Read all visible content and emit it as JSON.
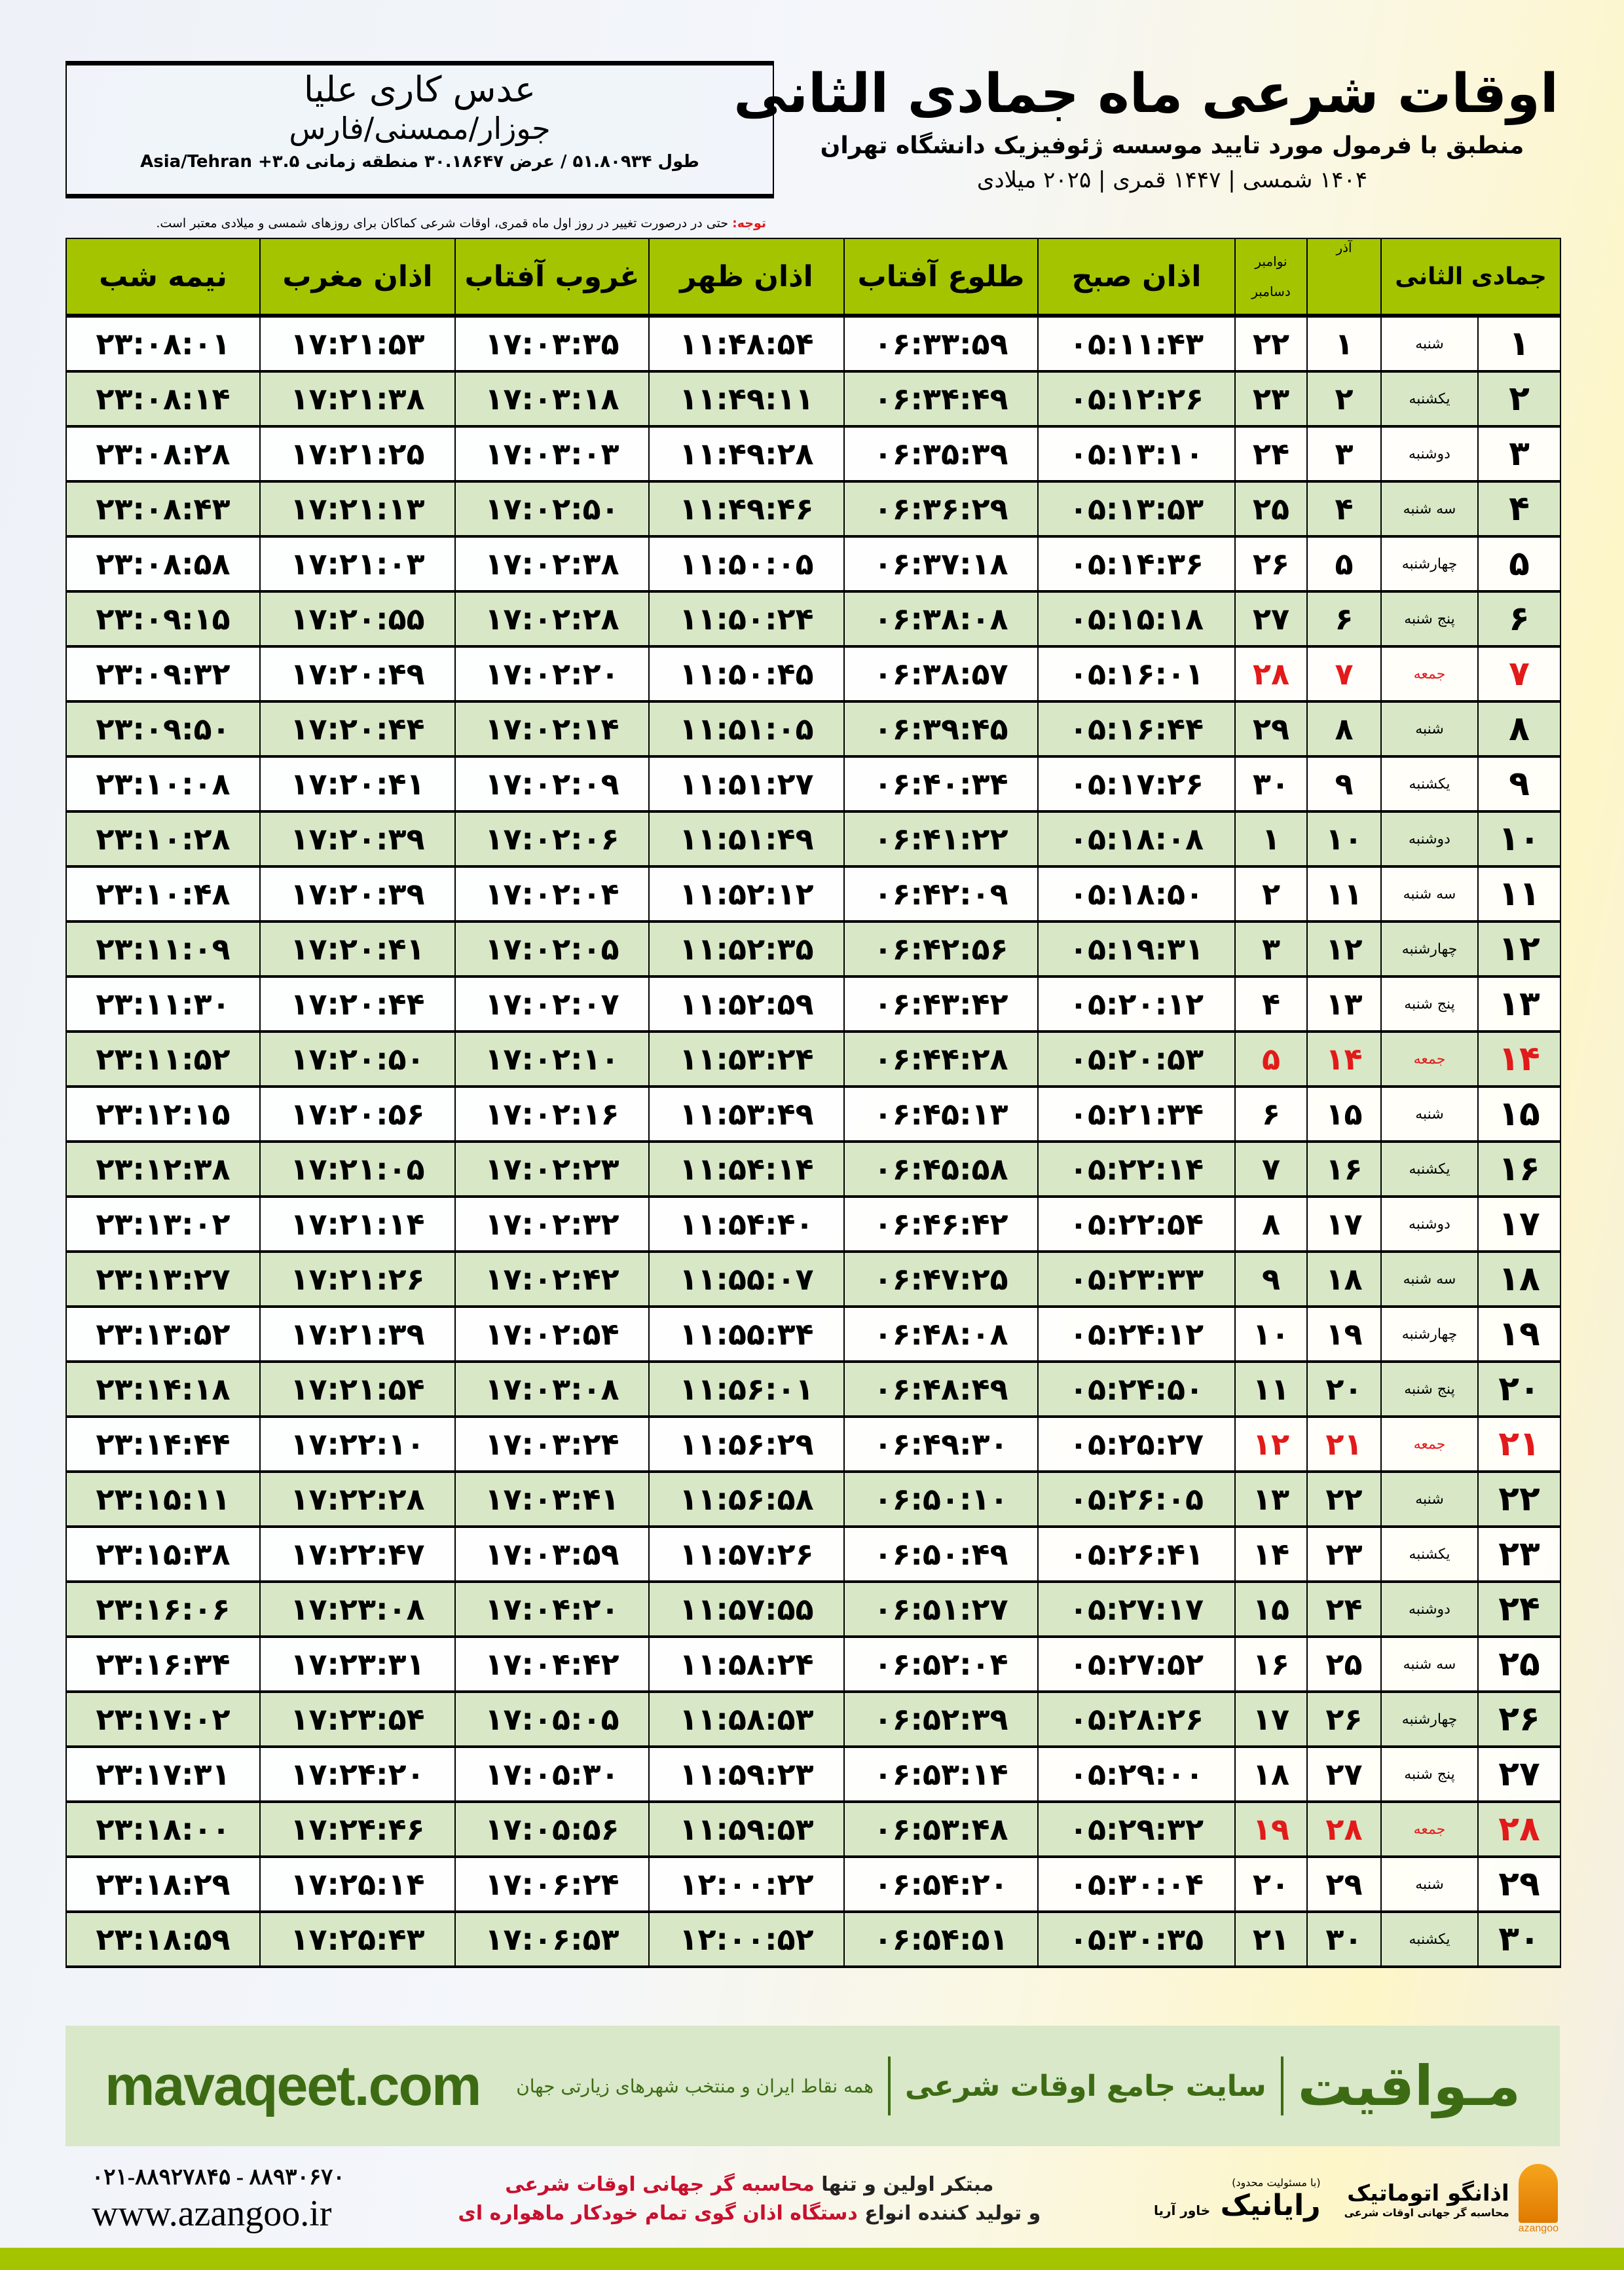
{
  "location": {
    "place": "عدس کاری علیا",
    "region": "جوزار/ممسنی/فارس",
    "coords": "طول ۵۱.۸۰۹۳۴ / عرض ۳۰.۱۸۶۴۷ منطقه زمانی ۳.۵+ Asia/Tehran"
  },
  "header": {
    "title": "اوقات شرعی ماه جمادی الثانی",
    "subtitle": "منطبق با فرمول مورد تایید موسسه ژئوفیزیک دانشگاه تهران",
    "years": "۱۴۰۴ شمسی | ۱۴۴۷ قمری | ۲۰۲۵ میلادی"
  },
  "note": {
    "label": "توجه:",
    "text": " حتی در درصورت تغییر در روز اول ماه قمری، اوقات شرعی کماکان برای روزهای شمسی و میلادی معتبر است."
  },
  "colors": {
    "header_bg": "#a5c400",
    "even_row": "#d8e7c6",
    "holiday": "#e21a1a",
    "brand_green": "#3d6b14"
  },
  "columns": {
    "hijri": "جمادی الثانی",
    "azar": "آذر",
    "gregorian_top": "نوامبر",
    "gregorian_bottom": "دسامبر",
    "fajr": "اذان صبح",
    "sunrise": "طلوع آفتاب",
    "dhuhr": "اذان ظهر",
    "sunset": "غروب آفتاب",
    "maghrib": "اذان مغرب",
    "midnight": "نیمه شب"
  },
  "rows": [
    {
      "day": "۱",
      "weekday": "شنبه",
      "azar": "۱",
      "greg": "۲۲",
      "fajr": "۰۵:۱۱:۴۳",
      "sunrise": "۰۶:۳۳:۵۹",
      "dhuhr": "۱۱:۴۸:۵۴",
      "sunset": "۱۷:۰۳:۳۵",
      "maghrib": "۱۷:۲۱:۵۳",
      "midnight": "۲۳:۰۸:۰۱",
      "holiday": false
    },
    {
      "day": "۲",
      "weekday": "یکشنبه",
      "azar": "۲",
      "greg": "۲۳",
      "fajr": "۰۵:۱۲:۲۶",
      "sunrise": "۰۶:۳۴:۴۹",
      "dhuhr": "۱۱:۴۹:۱۱",
      "sunset": "۱۷:۰۳:۱۸",
      "maghrib": "۱۷:۲۱:۳۸",
      "midnight": "۲۳:۰۸:۱۴",
      "holiday": false
    },
    {
      "day": "۳",
      "weekday": "دوشنبه",
      "azar": "۳",
      "greg": "۲۴",
      "fajr": "۰۵:۱۳:۱۰",
      "sunrise": "۰۶:۳۵:۳۹",
      "dhuhr": "۱۱:۴۹:۲۸",
      "sunset": "۱۷:۰۳:۰۳",
      "maghrib": "۱۷:۲۱:۲۵",
      "midnight": "۲۳:۰۸:۲۸",
      "holiday": false
    },
    {
      "day": "۴",
      "weekday": "سه شنبه",
      "azar": "۴",
      "greg": "۲۵",
      "fajr": "۰۵:۱۳:۵۳",
      "sunrise": "۰۶:۳۶:۲۹",
      "dhuhr": "۱۱:۴۹:۴۶",
      "sunset": "۱۷:۰۲:۵۰",
      "maghrib": "۱۷:۲۱:۱۳",
      "midnight": "۲۳:۰۸:۴۳",
      "holiday": false
    },
    {
      "day": "۵",
      "weekday": "چهارشنبه",
      "azar": "۵",
      "greg": "۲۶",
      "fajr": "۰۵:۱۴:۳۶",
      "sunrise": "۰۶:۳۷:۱۸",
      "dhuhr": "۱۱:۵۰:۰۵",
      "sunset": "۱۷:۰۲:۳۸",
      "maghrib": "۱۷:۲۱:۰۳",
      "midnight": "۲۳:۰۸:۵۸",
      "holiday": false
    },
    {
      "day": "۶",
      "weekday": "پنج شنبه",
      "azar": "۶",
      "greg": "۲۷",
      "fajr": "۰۵:۱۵:۱۸",
      "sunrise": "۰۶:۳۸:۰۸",
      "dhuhr": "۱۱:۵۰:۲۴",
      "sunset": "۱۷:۰۲:۲۸",
      "maghrib": "۱۷:۲۰:۵۵",
      "midnight": "۲۳:۰۹:۱۵",
      "holiday": false
    },
    {
      "day": "۷",
      "weekday": "جمعه",
      "azar": "۷",
      "greg": "۲۸",
      "fajr": "۰۵:۱۶:۰۱",
      "sunrise": "۰۶:۳۸:۵۷",
      "dhuhr": "۱۱:۵۰:۴۵",
      "sunset": "۱۷:۰۲:۲۰",
      "maghrib": "۱۷:۲۰:۴۹",
      "midnight": "۲۳:۰۹:۳۲",
      "holiday": true
    },
    {
      "day": "۸",
      "weekday": "شنبه",
      "azar": "۸",
      "greg": "۲۹",
      "fajr": "۰۵:۱۶:۴۴",
      "sunrise": "۰۶:۳۹:۴۵",
      "dhuhr": "۱۱:۵۱:۰۵",
      "sunset": "۱۷:۰۲:۱۴",
      "maghrib": "۱۷:۲۰:۴۴",
      "midnight": "۲۳:۰۹:۵۰",
      "holiday": false
    },
    {
      "day": "۹",
      "weekday": "یکشنبه",
      "azar": "۹",
      "greg": "۳۰",
      "fajr": "۰۵:۱۷:۲۶",
      "sunrise": "۰۶:۴۰:۳۴",
      "dhuhr": "۱۱:۵۱:۲۷",
      "sunset": "۱۷:۰۲:۰۹",
      "maghrib": "۱۷:۲۰:۴۱",
      "midnight": "۲۳:۱۰:۰۸",
      "holiday": false
    },
    {
      "day": "۱۰",
      "weekday": "دوشنبه",
      "azar": "۱۰",
      "greg": "۱",
      "fajr": "۰۵:۱۸:۰۸",
      "sunrise": "۰۶:۴۱:۲۲",
      "dhuhr": "۱۱:۵۱:۴۹",
      "sunset": "۱۷:۰۲:۰۶",
      "maghrib": "۱۷:۲۰:۳۹",
      "midnight": "۲۳:۱۰:۲۸",
      "holiday": false
    },
    {
      "day": "۱۱",
      "weekday": "سه شنبه",
      "azar": "۱۱",
      "greg": "۲",
      "fajr": "۰۵:۱۸:۵۰",
      "sunrise": "۰۶:۴۲:۰۹",
      "dhuhr": "۱۱:۵۲:۱۲",
      "sunset": "۱۷:۰۲:۰۴",
      "maghrib": "۱۷:۲۰:۳۹",
      "midnight": "۲۳:۱۰:۴۸",
      "holiday": false
    },
    {
      "day": "۱۲",
      "weekday": "چهارشنبه",
      "azar": "۱۲",
      "greg": "۳",
      "fajr": "۰۵:۱۹:۳۱",
      "sunrise": "۰۶:۴۲:۵۶",
      "dhuhr": "۱۱:۵۲:۳۵",
      "sunset": "۱۷:۰۲:۰۵",
      "maghrib": "۱۷:۲۰:۴۱",
      "midnight": "۲۳:۱۱:۰۹",
      "holiday": false
    },
    {
      "day": "۱۳",
      "weekday": "پنج شنبه",
      "azar": "۱۳",
      "greg": "۴",
      "fajr": "۰۵:۲۰:۱۲",
      "sunrise": "۰۶:۴۳:۴۲",
      "dhuhr": "۱۱:۵۲:۵۹",
      "sunset": "۱۷:۰۲:۰۷",
      "maghrib": "۱۷:۲۰:۴۴",
      "midnight": "۲۳:۱۱:۳۰",
      "holiday": false
    },
    {
      "day": "۱۴",
      "weekday": "جمعه",
      "azar": "۱۴",
      "greg": "۵",
      "fajr": "۰۵:۲۰:۵۳",
      "sunrise": "۰۶:۴۴:۲۸",
      "dhuhr": "۱۱:۵۳:۲۴",
      "sunset": "۱۷:۰۲:۱۰",
      "maghrib": "۱۷:۲۰:۵۰",
      "midnight": "۲۳:۱۱:۵۲",
      "holiday": true
    },
    {
      "day": "۱۵",
      "weekday": "شنبه",
      "azar": "۱۵",
      "greg": "۶",
      "fajr": "۰۵:۲۱:۳۴",
      "sunrise": "۰۶:۴۵:۱۳",
      "dhuhr": "۱۱:۵۳:۴۹",
      "sunset": "۱۷:۰۲:۱۶",
      "maghrib": "۱۷:۲۰:۵۶",
      "midnight": "۲۳:۱۲:۱۵",
      "holiday": false
    },
    {
      "day": "۱۶",
      "weekday": "یکشنبه",
      "azar": "۱۶",
      "greg": "۷",
      "fajr": "۰۵:۲۲:۱۴",
      "sunrise": "۰۶:۴۵:۵۸",
      "dhuhr": "۱۱:۵۴:۱۴",
      "sunset": "۱۷:۰۲:۲۳",
      "maghrib": "۱۷:۲۱:۰۵",
      "midnight": "۲۳:۱۲:۳۸",
      "holiday": false
    },
    {
      "day": "۱۷",
      "weekday": "دوشنبه",
      "azar": "۱۷",
      "greg": "۸",
      "fajr": "۰۵:۲۲:۵۴",
      "sunrise": "۰۶:۴۶:۴۲",
      "dhuhr": "۱۱:۵۴:۴۰",
      "sunset": "۱۷:۰۲:۳۲",
      "maghrib": "۱۷:۲۱:۱۴",
      "midnight": "۲۳:۱۳:۰۲",
      "holiday": false
    },
    {
      "day": "۱۸",
      "weekday": "سه شنبه",
      "azar": "۱۸",
      "greg": "۹",
      "fajr": "۰۵:۲۳:۳۳",
      "sunrise": "۰۶:۴۷:۲۵",
      "dhuhr": "۱۱:۵۵:۰۷",
      "sunset": "۱۷:۰۲:۴۲",
      "maghrib": "۱۷:۲۱:۲۶",
      "midnight": "۲۳:۱۳:۲۷",
      "holiday": false
    },
    {
      "day": "۱۹",
      "weekday": "چهارشنبه",
      "azar": "۱۹",
      "greg": "۱۰",
      "fajr": "۰۵:۲۴:۱۲",
      "sunrise": "۰۶:۴۸:۰۸",
      "dhuhr": "۱۱:۵۵:۳۴",
      "sunset": "۱۷:۰۲:۵۴",
      "maghrib": "۱۷:۲۱:۳۹",
      "midnight": "۲۳:۱۳:۵۲",
      "holiday": false
    },
    {
      "day": "۲۰",
      "weekday": "پنج شنبه",
      "azar": "۲۰",
      "greg": "۱۱",
      "fajr": "۰۵:۲۴:۵۰",
      "sunrise": "۰۶:۴۸:۴۹",
      "dhuhr": "۱۱:۵۶:۰۱",
      "sunset": "۱۷:۰۳:۰۸",
      "maghrib": "۱۷:۲۱:۵۴",
      "midnight": "۲۳:۱۴:۱۸",
      "holiday": false
    },
    {
      "day": "۲۱",
      "weekday": "جمعه",
      "azar": "۲۱",
      "greg": "۱۲",
      "fajr": "۰۵:۲۵:۲۷",
      "sunrise": "۰۶:۴۹:۳۰",
      "dhuhr": "۱۱:۵۶:۲۹",
      "sunset": "۱۷:۰۳:۲۴",
      "maghrib": "۱۷:۲۲:۱۰",
      "midnight": "۲۳:۱۴:۴۴",
      "holiday": true
    },
    {
      "day": "۲۲",
      "weekday": "شنبه",
      "azar": "۲۲",
      "greg": "۱۳",
      "fajr": "۰۵:۲۶:۰۵",
      "sunrise": "۰۶:۵۰:۱۰",
      "dhuhr": "۱۱:۵۶:۵۸",
      "sunset": "۱۷:۰۳:۴۱",
      "maghrib": "۱۷:۲۲:۲۸",
      "midnight": "۲۳:۱۵:۱۱",
      "holiday": false
    },
    {
      "day": "۲۳",
      "weekday": "یکشنبه",
      "azar": "۲۳",
      "greg": "۱۴",
      "fajr": "۰۵:۲۶:۴۱",
      "sunrise": "۰۶:۵۰:۴۹",
      "dhuhr": "۱۱:۵۷:۲۶",
      "sunset": "۱۷:۰۳:۵۹",
      "maghrib": "۱۷:۲۲:۴۷",
      "midnight": "۲۳:۱۵:۳۸",
      "holiday": false
    },
    {
      "day": "۲۴",
      "weekday": "دوشنبه",
      "azar": "۲۴",
      "greg": "۱۵",
      "fajr": "۰۵:۲۷:۱۷",
      "sunrise": "۰۶:۵۱:۲۷",
      "dhuhr": "۱۱:۵۷:۵۵",
      "sunset": "۱۷:۰۴:۲۰",
      "maghrib": "۱۷:۲۳:۰۸",
      "midnight": "۲۳:۱۶:۰۶",
      "holiday": false
    },
    {
      "day": "۲۵",
      "weekday": "سه شنبه",
      "azar": "۲۵",
      "greg": "۱۶",
      "fajr": "۰۵:۲۷:۵۲",
      "sunrise": "۰۶:۵۲:۰۴",
      "dhuhr": "۱۱:۵۸:۲۴",
      "sunset": "۱۷:۰۴:۴۲",
      "maghrib": "۱۷:۲۳:۳۱",
      "midnight": "۲۳:۱۶:۳۴",
      "holiday": false
    },
    {
      "day": "۲۶",
      "weekday": "چهارشنبه",
      "azar": "۲۶",
      "greg": "۱۷",
      "fajr": "۰۵:۲۸:۲۶",
      "sunrise": "۰۶:۵۲:۳۹",
      "dhuhr": "۱۱:۵۸:۵۳",
      "sunset": "۱۷:۰۵:۰۵",
      "maghrib": "۱۷:۲۳:۵۴",
      "midnight": "۲۳:۱۷:۰۲",
      "holiday": false
    },
    {
      "day": "۲۷",
      "weekday": "پنج شنبه",
      "azar": "۲۷",
      "greg": "۱۸",
      "fajr": "۰۵:۲۹:۰۰",
      "sunrise": "۰۶:۵۳:۱۴",
      "dhuhr": "۱۱:۵۹:۲۳",
      "sunset": "۱۷:۰۵:۳۰",
      "maghrib": "۱۷:۲۴:۲۰",
      "midnight": "۲۳:۱۷:۳۱",
      "holiday": false
    },
    {
      "day": "۲۸",
      "weekday": "جمعه",
      "azar": "۲۸",
      "greg": "۱۹",
      "fajr": "۰۵:۲۹:۳۲",
      "sunrise": "۰۶:۵۳:۴۸",
      "dhuhr": "۱۱:۵۹:۵۳",
      "sunset": "۱۷:۰۵:۵۶",
      "maghrib": "۱۷:۲۴:۴۶",
      "midnight": "۲۳:۱۸:۰۰",
      "holiday": true
    },
    {
      "day": "۲۹",
      "weekday": "شنبه",
      "azar": "۲۹",
      "greg": "۲۰",
      "fajr": "۰۵:۳۰:۰۴",
      "sunrise": "۰۶:۵۴:۲۰",
      "dhuhr": "۱۲:۰۰:۲۲",
      "sunset": "۱۷:۰۶:۲۴",
      "maghrib": "۱۷:۲۵:۱۴",
      "midnight": "۲۳:۱۸:۲۹",
      "holiday": false
    },
    {
      "day": "۳۰",
      "weekday": "یکشنبه",
      "azar": "۳۰",
      "greg": "۲۱",
      "fajr": "۰۵:۳۰:۳۵",
      "sunrise": "۰۶:۵۴:۵۱",
      "dhuhr": "۱۲:۰۰:۵۲",
      "sunset": "۱۷:۰۶:۵۳",
      "maghrib": "۱۷:۲۵:۴۳",
      "midnight": "۲۳:۱۸:۵۹",
      "holiday": false
    }
  ],
  "banner": {
    "brand": "مـواقیت",
    "tagline": "سایت جامع اوقات شرعی",
    "tagline_sub": "همه نقاط ایران و منتخب شهرهای زیارتی جهان",
    "site": "mavaqeet.com"
  },
  "footer": {
    "phone": "۰۲۱-۸۸۹۲۷۸۴۵ - ۸۸۹۳۰۶۷۰",
    "website": "www.azangoo.ir",
    "promo_line1_a": "مبتکر اولین و تنها ",
    "promo_line1_b": "محاسبه گر جهانی اوقات شرعی",
    "promo_line2_a": "و تولید کننده انواع ",
    "promo_line2_b": "دستگاه اذان گوی تمام خودکار ماهواره ای",
    "rayanik_small": "(با مسئولیت محدود)",
    "rayanik": "رایانیک",
    "rayanik_side": "خاور آریا",
    "azangoo": "اذانگو اتوماتیک",
    "azangoo_sub": "محاسبه گر جهانی اوقات شرعی",
    "azangoo_en": "azangoo"
  }
}
